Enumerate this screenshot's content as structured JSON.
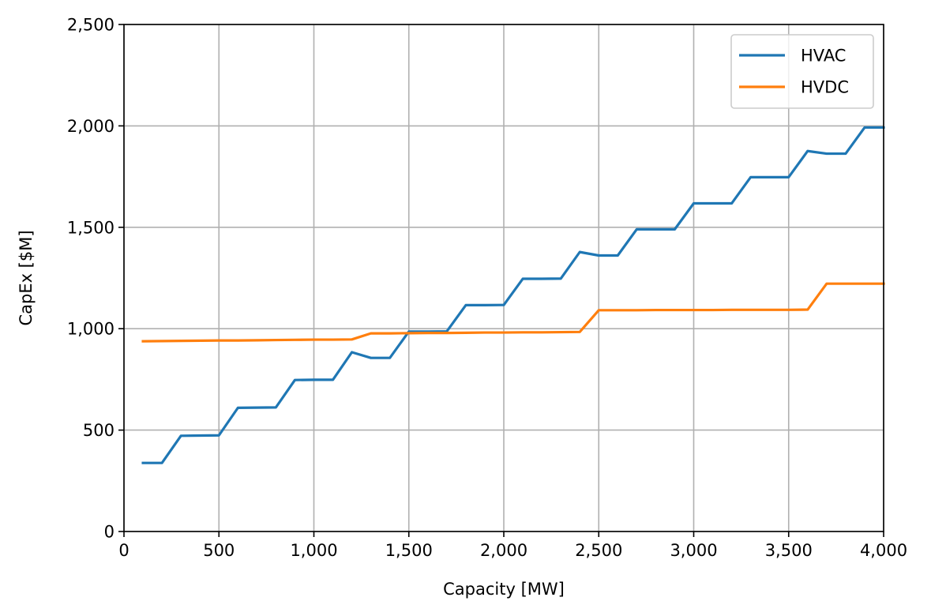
{
  "chart_data": {
    "type": "line",
    "title": "",
    "xlabel": "Capacity [MW]",
    "ylabel": "CapEx [$M]",
    "xlim": [
      0,
      4000
    ],
    "ylim": [
      0,
      2500
    ],
    "xticks": [
      0,
      500,
      1000,
      1500,
      2000,
      2500,
      3000,
      3500,
      4000
    ],
    "xtick_labels": [
      "0",
      "500",
      "1,000",
      "1,500",
      "2,000",
      "2,500",
      "3,000",
      "3,500",
      "4,000"
    ],
    "yticks": [
      0,
      500,
      1000,
      1500,
      2000,
      2500
    ],
    "ytick_labels": [
      "0",
      "500",
      "1,000",
      "1,500",
      "2,000",
      "2,500"
    ],
    "grid": true,
    "legend_position": "top-right",
    "x": [
      100,
      200,
      300,
      400,
      500,
      600,
      700,
      800,
      900,
      1000,
      1100,
      1200,
      1300,
      1400,
      1500,
      1600,
      1700,
      1800,
      1900,
      2000,
      2100,
      2200,
      2300,
      2400,
      2500,
      2600,
      2700,
      2800,
      2900,
      3000,
      3100,
      3200,
      3300,
      3400,
      3500,
      3600,
      3700,
      3800,
      3900,
      4000
    ],
    "series": [
      {
        "name": "HVAC",
        "color": "#1f77b4",
        "values": [
          338,
          338,
          472,
          473,
          474,
          610,
          611,
          612,
          747,
          748,
          748,
          884,
          856,
          856,
          986,
          986,
          987,
          1116,
          1116,
          1117,
          1246,
          1246,
          1247,
          1378,
          1361,
          1361,
          1490,
          1490,
          1490,
          1618,
          1618,
          1618,
          1747,
          1747,
          1747,
          1876,
          1863,
          1863,
          1992,
          1992
        ]
      },
      {
        "name": "HVDC",
        "color": "#ff7f0e",
        "values": [
          938,
          939,
          940,
          941,
          942,
          942,
          943,
          944,
          945,
          946,
          946,
          947,
          977,
          977,
          978,
          979,
          979,
          980,
          981,
          981,
          982,
          982,
          983,
          984,
          1091,
          1091,
          1091,
          1092,
          1092,
          1092,
          1092,
          1093,
          1093,
          1093,
          1093,
          1094,
          1222,
          1222,
          1222,
          1222
        ]
      }
    ]
  }
}
